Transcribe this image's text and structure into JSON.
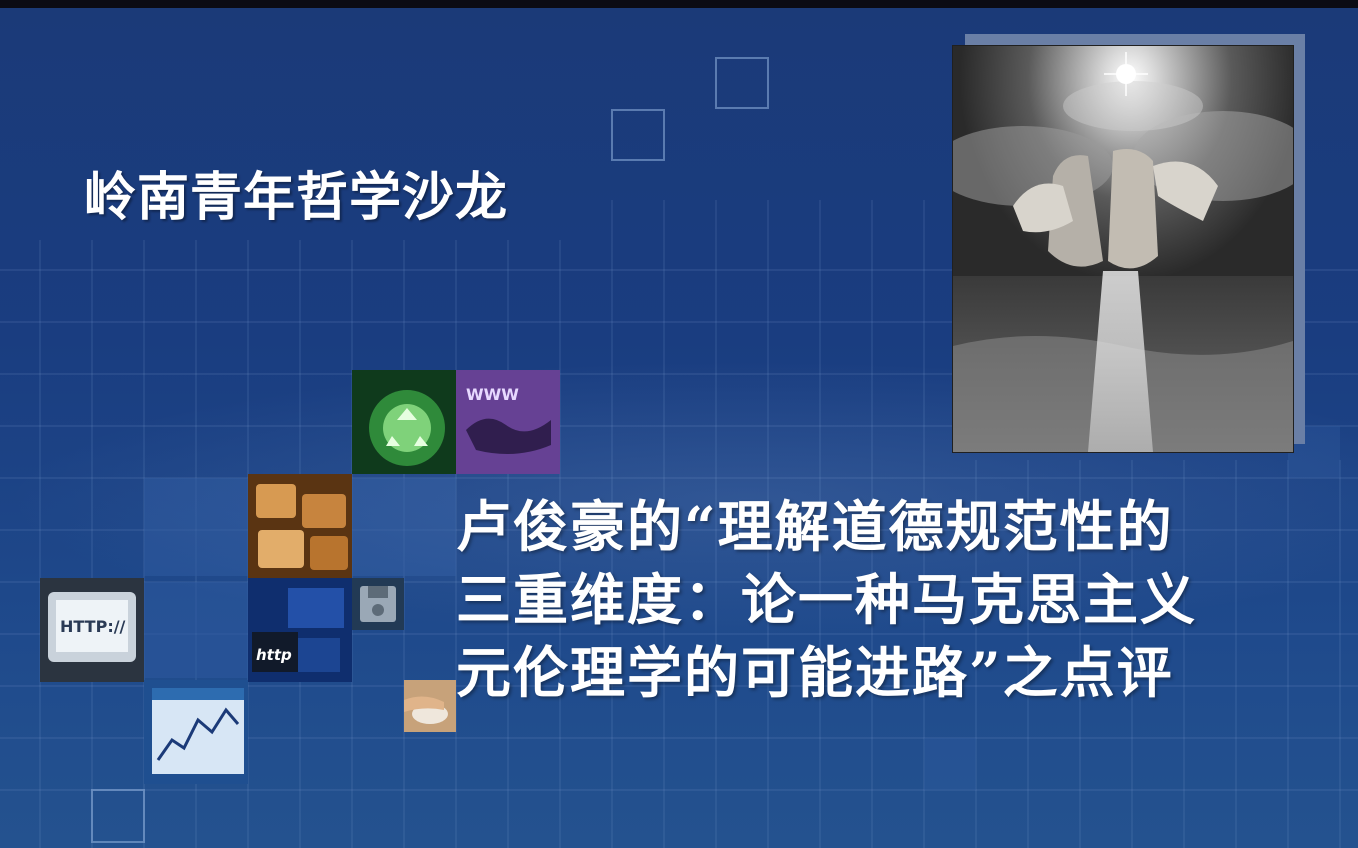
{
  "slide": {
    "title": "岭南青年哲学沙龙",
    "subtitle_lines": [
      "卢俊豪的“理解道德规范性的",
      "三重维度：论一种马克思主义",
      "元伦理学的可能进路”之点评"
    ]
  },
  "colors": {
    "background": "#1b3a78",
    "text": "#ffffff",
    "grid_line": "#7f9fd0"
  },
  "images": {
    "photo": "hands-breaking-stone-over-sea-photo",
    "thumbnails": [
      "recycle-symbol-thumbnail",
      "www-world-map-thumbnail",
      "keyboard-keys-thumbnail",
      "floppy-disk-thumbnail",
      "http-monitor-thumbnail",
      "circuit-board-http-thumbnail",
      "computer-mouse-hand-thumbnail",
      "stock-quote-chart-thumbnail"
    ]
  }
}
